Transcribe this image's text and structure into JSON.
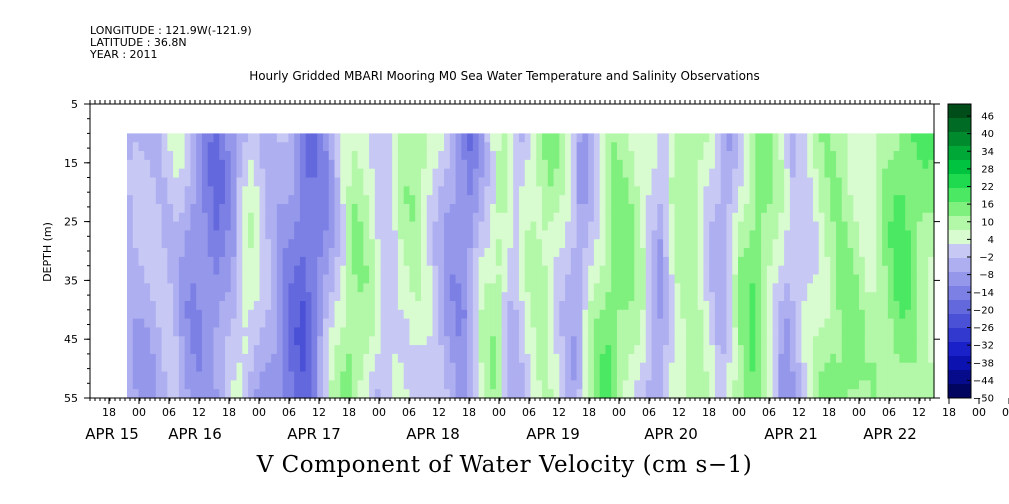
{
  "header": {
    "longitude": "LONGITUDE : 121.9W(-121.9)",
    "latitude": "LATITUDE : 36.8N",
    "year": "YEAR : 2011"
  },
  "chart_data": {
    "type": "heatmap",
    "title": "Hourly Gridded MBARI Mooring M0 Sea Water Temperature and Salinity Observations",
    "xlabel": "V Component of Water Velocity (cm s−1)",
    "ylabel": "DEPTH (m)",
    "ylim": [
      55,
      5
    ],
    "yticks": [
      5,
      15,
      25,
      35,
      45,
      55
    ],
    "xticks_hours": [
      "18",
      "00",
      "06",
      "12",
      "18",
      "00",
      "06",
      "12",
      "18",
      "00",
      "06",
      "12",
      "18",
      "00",
      "06",
      "12",
      "18",
      "00",
      "06",
      "12",
      "18",
      "00",
      "06",
      "12",
      "18",
      "00",
      "06",
      "12",
      "18",
      "00",
      "06",
      "12"
    ],
    "xticks_dates": [
      "APR 15",
      "APR 16",
      "APR 17",
      "APR 18",
      "APR 19",
      "APR 20",
      "APR 21",
      "APR 22"
    ],
    "data_depth_range": [
      10,
      55
    ],
    "colorbar": {
      "labels": [
        46,
        40,
        34,
        28,
        22,
        16,
        10,
        4,
        -2,
        -8,
        -14,
        -20,
        -26,
        -32,
        -38,
        -44,
        -50
      ],
      "colors": [
        "#004d1a",
        "#006b24",
        "#008a2e",
        "#00a838",
        "#00c43f",
        "#1fd94f",
        "#4be863",
        "#7ff07e",
        "#b3f7a8",
        "#d8fbd0",
        "#c8c8f5",
        "#aeaff0",
        "#9598ea",
        "#7c80e4",
        "#6369dd",
        "#4a51d6",
        "#3239cf",
        "#1a21c8",
        "#0b12b0",
        "#060b8c",
        "#02055f"
      ],
      "range": [
        -50,
        52
      ]
    },
    "bands": [
      {
        "x": 0.0,
        "v": -6
      },
      {
        "x": 0.03,
        "v": -4
      },
      {
        "x": 0.06,
        "v": 3
      },
      {
        "x": 0.08,
        "v": -6
      },
      {
        "x": 0.11,
        "v": -12
      },
      {
        "x": 0.13,
        "v": -6
      },
      {
        "x": 0.15,
        "v": 3
      },
      {
        "x": 0.17,
        "v": -4
      },
      {
        "x": 0.2,
        "v": -10
      },
      {
        "x": 0.22,
        "v": -16
      },
      {
        "x": 0.24,
        "v": -8
      },
      {
        "x": 0.26,
        "v": 4
      },
      {
        "x": 0.28,
        "v": 12
      },
      {
        "x": 0.3,
        "v": 6
      },
      {
        "x": 0.32,
        "v": -4
      },
      {
        "x": 0.34,
        "v": 6
      },
      {
        "x": 0.36,
        "v": 10
      },
      {
        "x": 0.38,
        "v": 4
      },
      {
        "x": 0.4,
        "v": -4
      },
      {
        "x": 0.42,
        "v": -10
      },
      {
        "x": 0.44,
        "v": 2
      },
      {
        "x": 0.46,
        "v": 8
      },
      {
        "x": 0.48,
        "v": -4
      },
      {
        "x": 0.5,
        "v": 6
      },
      {
        "x": 0.52,
        "v": 12
      },
      {
        "x": 0.54,
        "v": 6
      },
      {
        "x": 0.56,
        "v": -4
      },
      {
        "x": 0.58,
        "v": 8
      },
      {
        "x": 0.6,
        "v": 14
      },
      {
        "x": 0.62,
        "v": 10
      },
      {
        "x": 0.64,
        "v": 4
      },
      {
        "x": 0.66,
        "v": -6
      },
      {
        "x": 0.68,
        "v": 10
      },
      {
        "x": 0.7,
        "v": 14
      },
      {
        "x": 0.72,
        "v": 6
      },
      {
        "x": 0.74,
        "v": -4
      },
      {
        "x": 0.76,
        "v": 8
      },
      {
        "x": 0.78,
        "v": 14
      },
      {
        "x": 0.8,
        "v": 6
      },
      {
        "x": 0.82,
        "v": -4
      },
      {
        "x": 0.84,
        "v": 4
      },
      {
        "x": 0.86,
        "v": 12
      },
      {
        "x": 0.88,
        "v": 16
      },
      {
        "x": 0.9,
        "v": 12
      },
      {
        "x": 0.92,
        "v": 6
      },
      {
        "x": 0.94,
        "v": 10
      },
      {
        "x": 0.96,
        "v": 16
      },
      {
        "x": 1.0,
        "v": 12
      }
    ]
  }
}
